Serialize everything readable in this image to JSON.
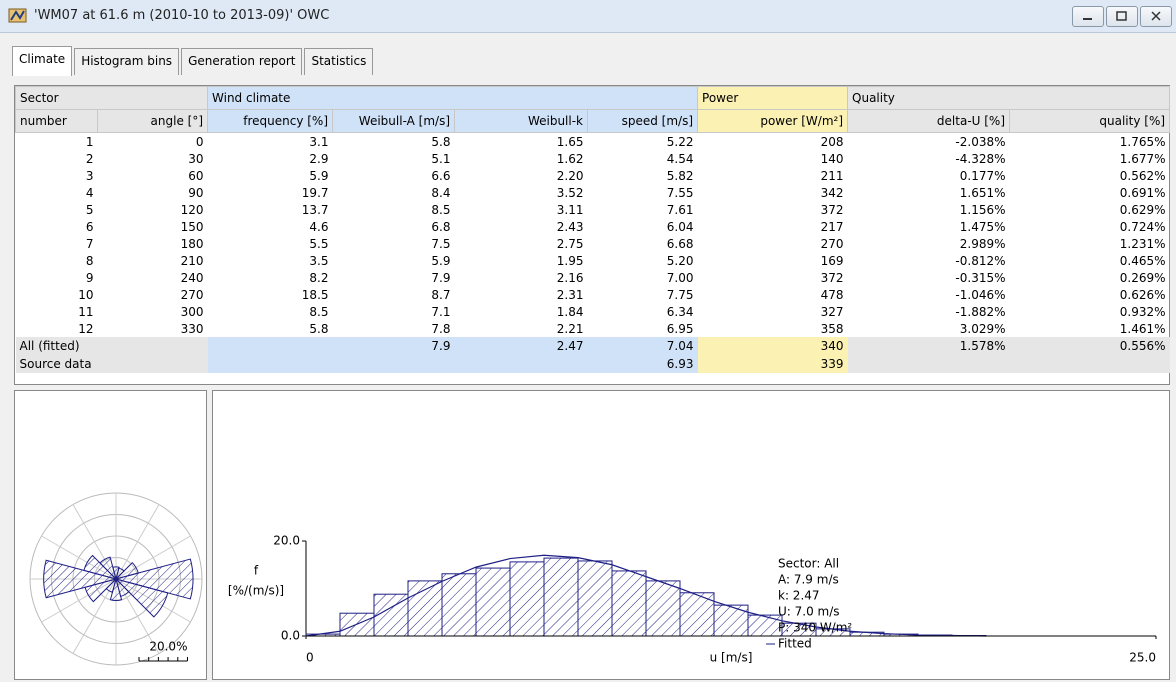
{
  "window": {
    "title": "'WM07 at 61.6 m (2010-10 to 2013-09)' OWC"
  },
  "tabs": [
    "Climate",
    "Histogram bins",
    "Generation report",
    "Statistics"
  ],
  "table": {
    "groups": [
      "Sector",
      "Wind climate",
      "Power",
      "Quality"
    ],
    "columns": [
      "number",
      "angle [°]",
      "frequency [%]",
      "Weibull-A [m/s]",
      "Weibull-k",
      "speed [m/s]",
      "power [W/m²]",
      "delta-U [%]",
      "quality [%]"
    ],
    "rows": [
      [
        "1",
        "0",
        "3.1",
        "5.8",
        "1.65",
        "5.22",
        "208",
        "-2.038%",
        "1.765%"
      ],
      [
        "2",
        "30",
        "2.9",
        "5.1",
        "1.62",
        "4.54",
        "140",
        "-4.328%",
        "1.677%"
      ],
      [
        "3",
        "60",
        "5.9",
        "6.6",
        "2.20",
        "5.82",
        "211",
        "0.177%",
        "0.562%"
      ],
      [
        "4",
        "90",
        "19.7",
        "8.4",
        "3.52",
        "7.55",
        "342",
        "1.651%",
        "0.691%"
      ],
      [
        "5",
        "120",
        "13.7",
        "8.5",
        "3.11",
        "7.61",
        "372",
        "1.156%",
        "0.629%"
      ],
      [
        "6",
        "150",
        "4.6",
        "6.8",
        "2.43",
        "6.04",
        "217",
        "1.475%",
        "0.724%"
      ],
      [
        "7",
        "180",
        "5.5",
        "7.5",
        "2.75",
        "6.68",
        "270",
        "2.989%",
        "1.231%"
      ],
      [
        "8",
        "210",
        "3.5",
        "5.9",
        "1.95",
        "5.20",
        "169",
        "-0.812%",
        "0.465%"
      ],
      [
        "9",
        "240",
        "8.2",
        "7.9",
        "2.16",
        "7.00",
        "372",
        "-0.315%",
        "0.269%"
      ],
      [
        "10",
        "270",
        "18.5",
        "8.7",
        "2.31",
        "7.75",
        "478",
        "-1.046%",
        "0.626%"
      ],
      [
        "11",
        "300",
        "8.5",
        "7.1",
        "1.84",
        "6.34",
        "327",
        "-1.882%",
        "0.932%"
      ],
      [
        "12",
        "330",
        "5.8",
        "7.8",
        "2.21",
        "6.95",
        "358",
        "3.029%",
        "1.461%"
      ]
    ],
    "summary": [
      {
        "label": "All (fitted)",
        "weibull_a": "7.9",
        "weibull_k": "2.47",
        "speed": "7.04",
        "power": "340",
        "delta_u": "1.578%",
        "quality": "0.556%"
      },
      {
        "label": "Source data",
        "speed": "6.93",
        "power": "339"
      }
    ]
  },
  "rose": {
    "rlim": [
      0,
      22
    ],
    "scale": {
      "value": 20,
      "label": "20.0%"
    }
  },
  "chart_data": {
    "type": "histogram",
    "ylabel": [
      "f",
      "[%/(m/s)]"
    ],
    "xlabel": "u [m/s]",
    "bins": [
      0,
      1,
      2,
      3,
      4,
      5,
      6,
      7,
      8,
      9,
      10,
      11,
      12,
      13,
      14,
      15,
      16,
      17,
      18,
      19,
      20
    ],
    "counts": [
      0.4,
      4.8,
      8.8,
      11.6,
      13.1,
      14.3,
      15.6,
      16.4,
      15.8,
      13.7,
      11.6,
      9.1,
      6.5,
      4.4,
      2.7,
      1.5,
      0.8,
      0.4,
      0.2,
      0.1
    ],
    "color": "#1f1f85",
    "curve": {
      "name": "Fitted",
      "x": [
        0,
        1,
        2,
        3,
        4,
        5,
        6,
        7,
        8,
        9,
        10,
        11,
        12,
        13,
        14,
        15,
        16,
        17,
        18,
        19,
        20
      ],
      "values": [
        0,
        1.0,
        4.0,
        8.0,
        11.5,
        14.5,
        16.3,
        17.0,
        16.5,
        15.0,
        12.5,
        10.0,
        7.3,
        5.0,
        3.2,
        1.9,
        1.0,
        0.5,
        0.2,
        0.1,
        0
      ]
    },
    "annotations": [
      "Sector: All",
      "A: 7.9 m/s",
      "k: 2.47",
      "U: 7.0 m/s",
      "P: 340 W/m²"
    ],
    "xlim": [
      0,
      25
    ],
    "xticks": [
      0,
      {
        "value": 25,
        "label": "25.0"
      }
    ],
    "ylim": [
      0,
      20
    ],
    "yticks": [
      {
        "value": 0,
        "label": "0.0"
      },
      {
        "value": 20,
        "label": "20.0"
      }
    ]
  }
}
